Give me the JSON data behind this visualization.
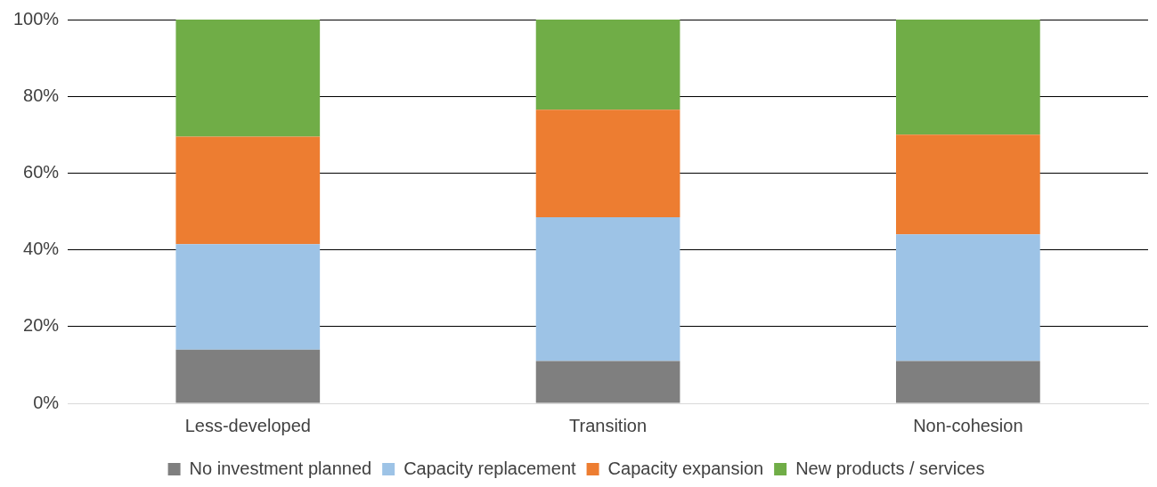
{
  "chart_data": {
    "type": "bar",
    "stacked": true,
    "categories": [
      "Less-developed",
      "Transition",
      "Non-cohesion"
    ],
    "series": [
      {
        "name": "No investment planned",
        "color": "#7f7f7f",
        "values": [
          14,
          11,
          11
        ]
      },
      {
        "name": "Capacity replacement",
        "color": "#9dc3e6",
        "values": [
          27.5,
          37.5,
          33
        ]
      },
      {
        "name": "Capacity expansion",
        "color": "#ed7d31",
        "values": [
          28,
          28,
          26
        ]
      },
      {
        "name": "New products / services",
        "color": "#70ad47",
        "values": [
          30.5,
          23.5,
          30
        ]
      }
    ],
    "ylim": [
      0,
      100
    ],
    "yticks": [
      {
        "value": 0,
        "label": "0%"
      },
      {
        "value": 20,
        "label": "20%"
      },
      {
        "value": 40,
        "label": "40%"
      },
      {
        "value": 60,
        "label": "60%"
      },
      {
        "value": 80,
        "label": "80%"
      },
      {
        "value": 100,
        "label": "100%"
      }
    ],
    "grid": "y",
    "legend": "bottom"
  }
}
